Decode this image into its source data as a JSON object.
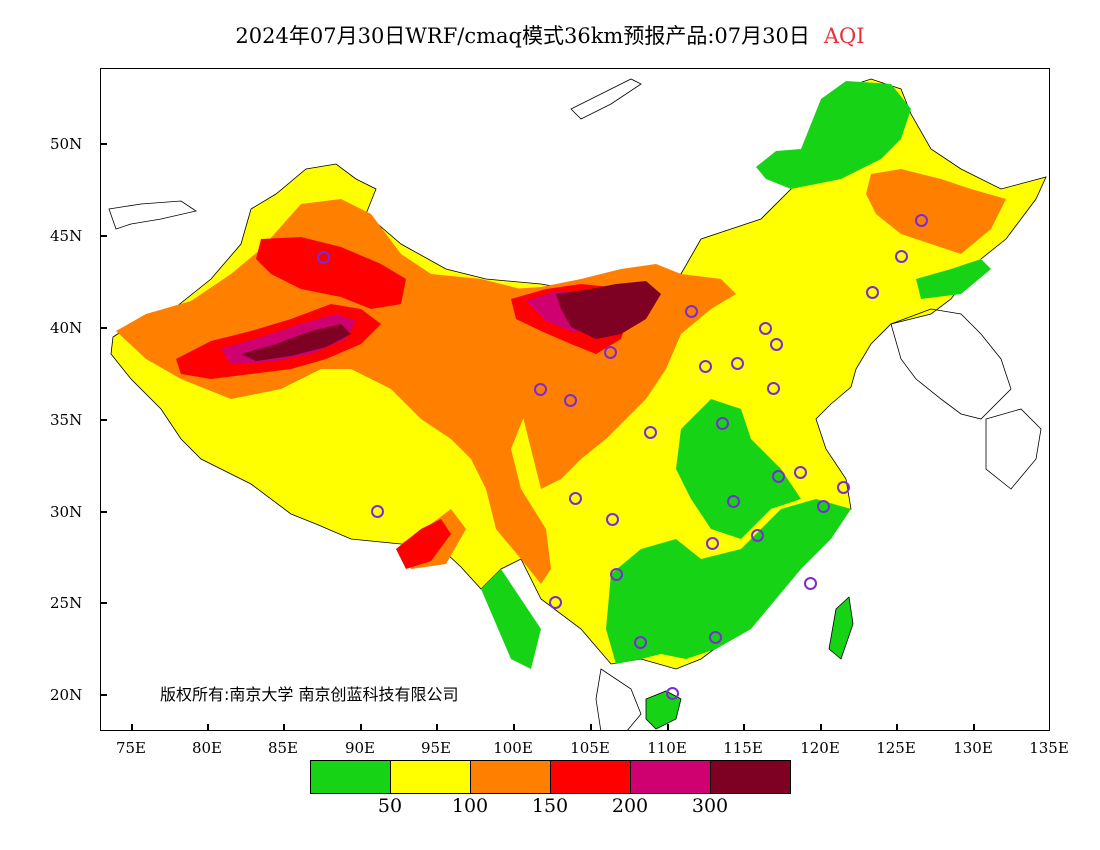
{
  "title": {
    "main": "2024年07月30日WRF/cmaq模式36km预报产品:07月30日",
    "variable": "AQI"
  },
  "axes": {
    "latitude_labels": [
      "50N",
      "45N",
      "40N",
      "35N",
      "30N",
      "25N",
      "20N"
    ],
    "longitude_labels": [
      "75E",
      "80E",
      "85E",
      "90E",
      "95E",
      "100E",
      "105E",
      "110E",
      "115E",
      "120E",
      "125E",
      "130E",
      "135E"
    ]
  },
  "copyright": "版权所有:南京大学 南京创蓝科技有限公司",
  "legend": {
    "colors": [
      "#17d316",
      "#ffff00",
      "#ff7f00",
      "#ff0000",
      "#cf0070",
      "#7e0023"
    ],
    "labels": [
      "50",
      "100",
      "150",
      "200",
      "300"
    ]
  },
  "map_colors": {
    "good": "#17d316",
    "moderate": "#ffff00",
    "sensitive": "#ff7f00",
    "unhealthy": "#ff0000",
    "very_unhealthy": "#cf0070",
    "hazardous": "#7e0023",
    "city_marker": "#7b2bd6"
  }
}
